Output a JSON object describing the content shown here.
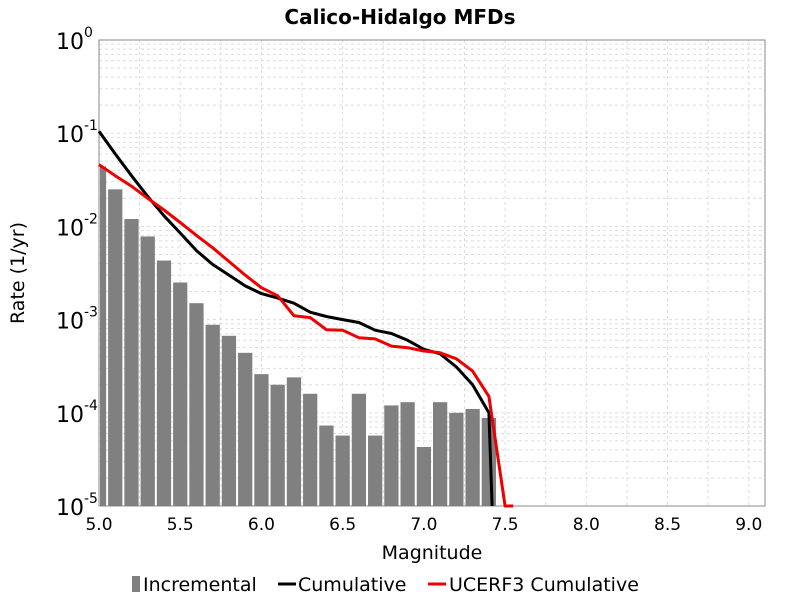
{
  "chart_data": {
    "type": "bar+line",
    "title": "Calico-Hidalgo MFDs",
    "xlabel": "Magnitude",
    "ylabel": "Rate (1/yr)",
    "xlim": [
      5.0,
      9.1
    ],
    "ylim": [
      1e-05,
      1
    ],
    "yscale": "log",
    "grid": true,
    "legend_position": "bottom",
    "xticks": [
      "5.0",
      "5.5",
      "6.0",
      "6.5",
      "7.0",
      "7.5",
      "8.0",
      "8.5",
      "9.0"
    ],
    "yticks": [
      {
        "base": "10",
        "exp": "0"
      },
      {
        "base": "10",
        "exp": "-1"
      },
      {
        "base": "10",
        "exp": "-2"
      },
      {
        "base": "10",
        "exp": "-3"
      },
      {
        "base": "10",
        "exp": "-4"
      },
      {
        "base": "10",
        "exp": "-5"
      }
    ],
    "incremental": {
      "name": "Incremental",
      "color": "#808080",
      "bin_width": 0.1,
      "x": [
        5.0,
        5.1,
        5.2,
        5.3,
        5.4,
        5.5,
        5.6,
        5.7,
        5.8,
        5.9,
        6.0,
        6.1,
        6.2,
        6.3,
        6.4,
        6.5,
        6.6,
        6.7,
        6.8,
        6.9,
        7.0,
        7.1,
        7.2,
        7.3,
        7.4
      ],
      "values": [
        0.044,
        0.025,
        0.012,
        0.0078,
        0.0043,
        0.0025,
        0.0015,
        0.00088,
        0.00067,
        0.00044,
        0.00026,
        0.0002,
        0.00024,
        0.00016,
        7.3e-05,
        5.7e-05,
        0.00016,
        5.7e-05,
        0.00012,
        0.00013,
        4.3e-05,
        0.00013,
        0.0001,
        0.00011,
        8.8e-05
      ]
    },
    "cumulative": {
      "name": "Cumulative",
      "color": "#000000",
      "x": [
        5.0,
        5.1,
        5.2,
        5.3,
        5.4,
        5.5,
        5.6,
        5.7,
        5.8,
        5.9,
        6.0,
        6.1,
        6.2,
        6.3,
        6.4,
        6.5,
        6.6,
        6.7,
        6.8,
        6.9,
        7.0,
        7.1,
        7.2,
        7.3,
        7.4,
        7.42
      ],
      "values": [
        0.105,
        0.06,
        0.035,
        0.021,
        0.013,
        0.0085,
        0.0055,
        0.0039,
        0.003,
        0.0023,
        0.0019,
        0.0017,
        0.0015,
        0.0012,
        0.00108,
        0.001,
        0.00093,
        0.00077,
        0.00071,
        0.0006,
        0.00048,
        0.00043,
        0.00031,
        0.0002,
        0.0001,
        1e-05
      ]
    },
    "ucerf3_cumulative": {
      "name": "UCERF3 Cumulative",
      "color": "#ee0000",
      "x": [
        5.0,
        5.1,
        5.2,
        5.3,
        5.4,
        5.5,
        5.6,
        5.7,
        5.8,
        5.9,
        6.0,
        6.1,
        6.2,
        6.3,
        6.4,
        6.5,
        6.6,
        6.7,
        6.8,
        6.9,
        7.0,
        7.1,
        7.2,
        7.3,
        7.4,
        7.5,
        7.55
      ],
      "values": [
        0.046,
        0.035,
        0.027,
        0.02,
        0.015,
        0.011,
        0.008,
        0.0059,
        0.0042,
        0.003,
        0.0022,
        0.0018,
        0.0011,
        0.00105,
        0.00078,
        0.00077,
        0.00064,
        0.00062,
        0.00052,
        0.0005,
        0.00046,
        0.00044,
        0.00038,
        0.00028,
        0.00015,
        1e-05,
        1e-05
      ]
    }
  }
}
